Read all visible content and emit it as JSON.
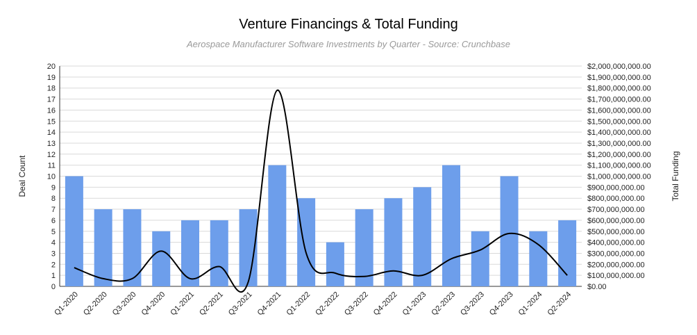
{
  "chart_data": {
    "type": "bar",
    "title": "Venture Financings & Total Funding",
    "subtitle": "Aerospace Manufacturer Software Investments by Quarter - Source: Crunchbase",
    "categories": [
      "Q1-2020",
      "Q2-2020",
      "Q3-2020",
      "Q4-2020",
      "Q1-2021",
      "Q2-2021",
      "Q3-2021",
      "Q4-2021",
      "Q1-2022",
      "Q2-2022",
      "Q3-2022",
      "Q4-2022",
      "Q1-2023",
      "Q2-2023",
      "Q3-2023",
      "Q4-2023",
      "Q1-2024",
      "Q2-2024"
    ],
    "series": [
      {
        "kind": "bar",
        "axis": "left",
        "color": "#6d9eeb",
        "values": [
          10,
          7,
          7,
          5,
          6,
          6,
          7,
          11,
          8,
          4,
          7,
          8,
          9,
          11,
          5,
          10,
          5,
          6
        ]
      },
      {
        "kind": "line",
        "axis": "right",
        "color": "#000000",
        "smooth": true,
        "values": [
          170000000,
          70000000,
          70000000,
          320000000,
          70000000,
          180000000,
          40000000,
          1780000000,
          300000000,
          120000000,
          90000000,
          140000000,
          100000000,
          250000000,
          330000000,
          480000000,
          380000000,
          100000000
        ]
      }
    ],
    "ylabel": "Deal Count",
    "y2label": "Total Funding",
    "ylim": [
      0,
      20
    ],
    "y2lim": [
      0,
      2000000000
    ],
    "yticks": [
      "0",
      "1",
      "2",
      "3",
      "4",
      "5",
      "6",
      "7",
      "8",
      "9",
      "10",
      "11",
      "12",
      "13",
      "14",
      "15",
      "16",
      "17",
      "18",
      "19",
      "20"
    ],
    "y2ticks": [
      "$0.00",
      "$100,000,000.00",
      "$200,000,000.00",
      "$300,000,000.00",
      "$400,000,000.00",
      "$500,000,000.00",
      "$600,000,000.00",
      "$700,000,000.00",
      "$800,000,000.00",
      "$900,000,000.00",
      "$1,000,000,000.00",
      "$1,100,000,000.00",
      "$1,200,000,000.00",
      "$1,300,000,000.00",
      "$1,400,000,000.00",
      "$1,500,000,000.00",
      "$1,600,000,000.00",
      "$1,700,000,000.00",
      "$1,800,000,000.00",
      "$1,900,000,000.00",
      "$2,000,000,000.00"
    ],
    "grid": true
  }
}
